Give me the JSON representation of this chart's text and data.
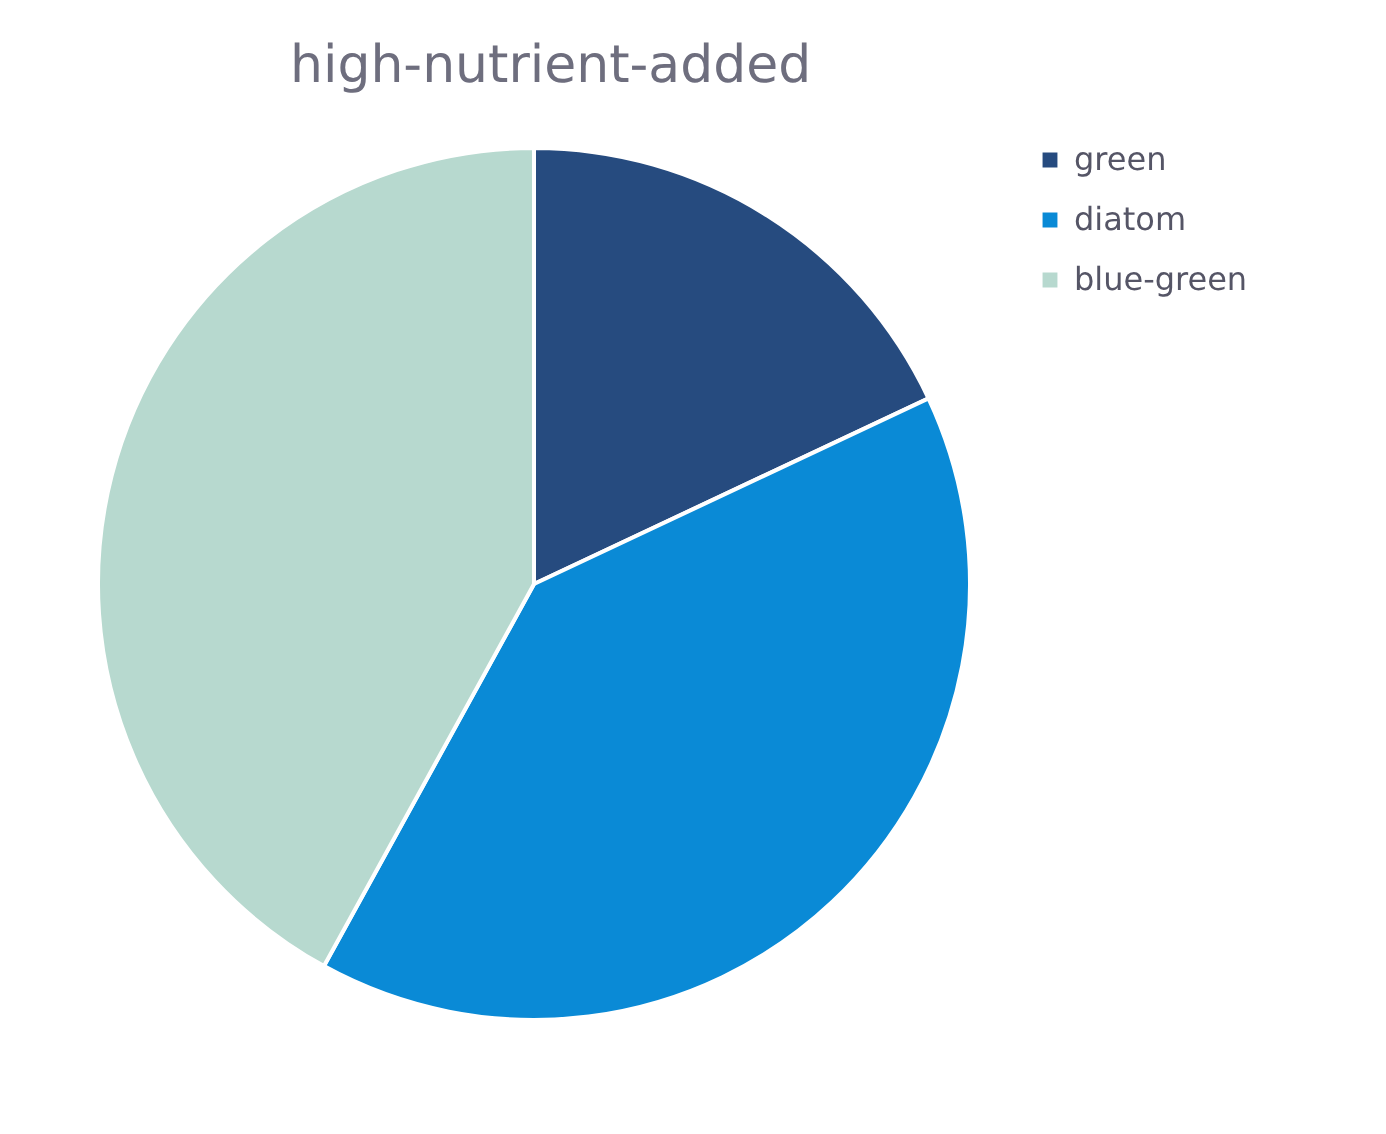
{
  "chart_data": {
    "type": "pie",
    "title": "high-nutrient-added",
    "categories": [
      "green",
      "diatom",
      "blue-green"
    ],
    "values": [
      18,
      40,
      42
    ],
    "colors": [
      "#264b7f",
      "#0a8ad6",
      "#b7d9cf"
    ],
    "legend": "right"
  }
}
